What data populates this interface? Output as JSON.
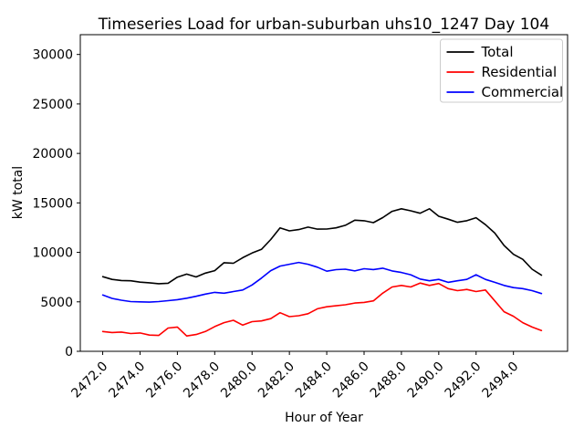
{
  "figure": {
    "title": "Timeseries Load for urban-suburban uhs10_1247  Day 104",
    "xlabel": "Hour of Year",
    "ylabel": "kW total"
  },
  "chart_data": {
    "type": "line",
    "title": "Timeseries Load for urban-suburban uhs10_1247  Day 104",
    "xlabel": "Hour of Year",
    "ylabel": "kW total",
    "xlim": [
      2470.8,
      2496.9
    ],
    "ylim": [
      0,
      32000
    ],
    "grid": false,
    "x_start": 2472.0,
    "x_step": 0.5,
    "xticks": [
      2472,
      2474,
      2476,
      2478,
      2480,
      2482,
      2484,
      2486,
      2488,
      2490,
      2492,
      2494
    ],
    "xtick_labels": [
      "2472.0",
      "2474.0",
      "2476.0",
      "2478.0",
      "2480.0",
      "2482.0",
      "2484.0",
      "2486.0",
      "2488.0",
      "2490.0",
      "2492.0",
      "2494.0"
    ],
    "yticks": [
      0,
      5000,
      10000,
      15000,
      20000,
      25000,
      30000
    ],
    "ytick_labels": [
      "0",
      "5000",
      "10000",
      "15000",
      "20000",
      "25000",
      "30000"
    ],
    "legend": {
      "position": "upper right",
      "entries": [
        "Total",
        "Residential",
        "Commercial"
      ]
    },
    "series": [
      {
        "name": "Total",
        "color": "#000000",
        "values": [
          7540,
          7270,
          7160,
          7130,
          6990,
          6930,
          6830,
          6880,
          7500,
          7800,
          7520,
          7900,
          8150,
          8950,
          8900,
          9460,
          9930,
          10300,
          11300,
          12480,
          12170,
          12300,
          12550,
          12350,
          12360,
          12480,
          12740,
          13250,
          13200,
          13000,
          13510,
          14150,
          14400,
          14200,
          13950,
          14400,
          13650,
          13350,
          13040,
          13200,
          13500,
          12800,
          11950,
          10700,
          9800,
          9300,
          8300,
          7690
        ]
      },
      {
        "name": "Residential",
        "color": "#ff0000",
        "values": [
          2000,
          1900,
          1950,
          1800,
          1850,
          1640,
          1600,
          2350,
          2450,
          1550,
          1700,
          2000,
          2500,
          2900,
          3140,
          2650,
          3000,
          3075,
          3300,
          3900,
          3500,
          3600,
          3800,
          4300,
          4500,
          4600,
          4700,
          4880,
          4940,
          5100,
          5870,
          6500,
          6660,
          6500,
          6900,
          6660,
          6850,
          6340,
          6130,
          6250,
          6040,
          6200,
          5100,
          4000,
          3540,
          2900,
          2450,
          2100
        ]
      },
      {
        "name": "Commercial",
        "color": "#0000ff",
        "values": [
          5690,
          5350,
          5160,
          5030,
          5000,
          4970,
          5030,
          5120,
          5220,
          5370,
          5560,
          5780,
          5960,
          5870,
          6040,
          6200,
          6700,
          7400,
          8150,
          8610,
          8800,
          8980,
          8800,
          8500,
          8100,
          8250,
          8300,
          8120,
          8350,
          8260,
          8400,
          8120,
          7970,
          7740,
          7300,
          7130,
          7270,
          6970,
          7130,
          7270,
          7740,
          7270,
          6970,
          6660,
          6440,
          6340,
          6130,
          5840
        ]
      }
    ]
  }
}
